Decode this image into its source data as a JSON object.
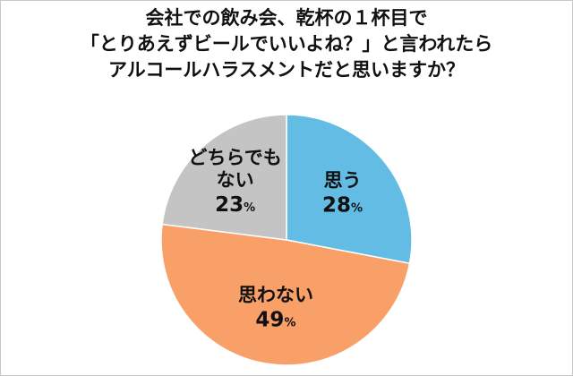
{
  "chart_data": {
    "type": "pie",
    "title_lines": [
      "会社での飲み会、乾杯の１杯目で",
      "「とりあえずビールでいいよね？」と言われたら",
      "アルコールハラスメントだと思いますか？"
    ],
    "slices": [
      {
        "label_lines": [
          "思う"
        ],
        "value": 28,
        "display": "28",
        "unit": "%",
        "color": "#62bce3"
      },
      {
        "label_lines": [
          "思わない"
        ],
        "value": 49,
        "display": "49",
        "unit": "%",
        "color": "#f8a068"
      },
      {
        "label_lines": [
          "どちらでも",
          "ない"
        ],
        "value": 23,
        "display": "23",
        "unit": "%",
        "color": "#c4c4c4"
      }
    ],
    "start_angle": "12 o'clock",
    "direction": "clockwise"
  }
}
